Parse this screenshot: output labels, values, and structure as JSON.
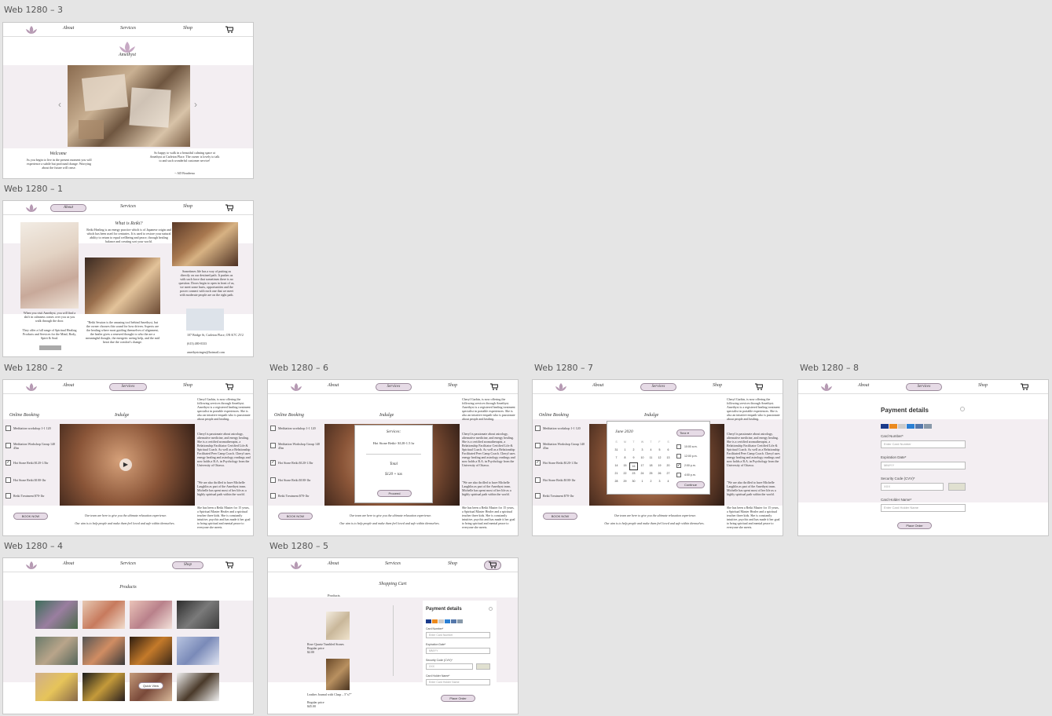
{
  "frames": {
    "f3": "Web 1280 – 3",
    "f1": "Web 1280 – 1",
    "f2": "Web 1280 – 2",
    "f6": "Web 1280 – 6",
    "f7": "Web 1280 – 7",
    "f8": "Web 1280 – 8",
    "f4": "Web 1280 – 4",
    "f5": "Web 1280 – 5"
  },
  "nav": {
    "about": "About",
    "services": "Services",
    "shop": "Shop"
  },
  "home": {
    "brand": "Amethyst",
    "welcome_title": "Welcome",
    "welcome_text": "As you begin to live in the present moment you will experience a subtle but profound change. Worrying about the future will cease.",
    "quote": "So happy to walk in a beautiful calming space at Amethyst at Carleton Place. The owner is lovely to talk to and such wonderful customer service!",
    "quote_author": "~ AD Boudreau"
  },
  "about": {
    "title": "What is Reiki?",
    "intro": "Reiki Healing is an energy practice which is of Japanese origin and which has been used for centuries. It is used to restore your natural ability to return to equal wellbeing and peace, through healing balance and creating sort your world.",
    "left_text": "When you visit Amethyst, you will find a shift in calmness comes over you as you walk through the door.",
    "left_text2": "They offer a full range of Spiritual Healing Products and Services for the Mind, Body, Spirit & Soul.",
    "mid_text": "\"Reiki Session is the amazing tool behind Amethyst, but the owner chooses this sound for how driven. Aspects are the healing where most guiding themselves of alignment, the healer gives a renewed thought to who the are a meaningful thought, the energetic seeing help, and the mid heart due the comfort's change.",
    "right_text": "Sometimes life has a way of putting us directly on our destined path. It pushes us with such force that sometimes there is no question. Doors begin to open in front of us, we meet some hurts, opportunities and the power connect with each one that we meet with moderate people are on the right path.",
    "address": "107 Bridge St, Carleton Place, ON K7C 2V2",
    "phone": "(613) 480-0333",
    "email": "amethystringes@hotmail.com"
  },
  "booking": {
    "title": "Online Booking",
    "indulge": "Indulge",
    "options": [
      {
        "label": "Meditation workshop 1-1 120",
        "checked": false
      },
      {
        "label": "Meditation Workshop Group 140 45m",
        "checked": false
      },
      {
        "label": "Hot Stone Reiki $120-1.5hr",
        "checked": true
      },
      {
        "label": "Hot Stone Reiki $100-1hr",
        "checked": false
      },
      {
        "label": "Reiki Treatment $70-1hr",
        "checked": false
      }
    ],
    "book_now": "BOOK NOW",
    "tagline1": "Our team are here to give you the ultimate relaxation experience.",
    "tagline2": "Our aim is to help people and make them feel loved and safe within themselves.",
    "side_text1": "Cheryl Garbin, is now offering the following services through Amethyst. Amethyst is a registered healing treatment specialist in portable experiences. She is also an intuitive empath who is passionate about people and healing.",
    "side_text2": "Cheryl is passionate about astrology, alternative medicine, and energy healing. She is a certified aromatherapist, a Relationship Facilitator Certified Life & Spiritual Coach. As well as a Relationship Facilitated Peer Camp Coach. Cheryl uses energy healing and astrology readings and now holds a B.A. in Psychology from the University of Ottawa.",
    "side_text3": "\"We are also thrilled to have Michelle Laughlin as part of the Amethyst team. Michelle has spent most of her life as a highly spiritual path within the world.",
    "side_text4": "She has been a Reiki Master for 15 years, a Spiritual Master Healer and a spiritual teacher three kids. She is constantly intuitive, psychic and has made it her goal to bring spiritual and mental peace to everyone she meets."
  },
  "summary": {
    "services_label": "Services:",
    "service": "Hot Stone Reiki- $120-1.5 hr",
    "total_label": "Total",
    "total": "$120 + tax",
    "proceed": "Proceed"
  },
  "calendar": {
    "month": "June 2020",
    "weekdays": [
      "S",
      "M",
      "T",
      "W",
      "T",
      "F",
      "S"
    ],
    "weeks": [
      [
        "31",
        "1",
        "2",
        "3",
        "4",
        "5",
        "6"
      ],
      [
        "7",
        "8",
        "9",
        "10",
        "11",
        "12",
        "13"
      ],
      [
        "14",
        "15",
        "16",
        "17",
        "18",
        "19",
        "20"
      ],
      [
        "21",
        "22",
        "23",
        "24",
        "25",
        "26",
        "27"
      ],
      [
        "28",
        "29",
        "30",
        "1",
        "2",
        "3",
        "4"
      ]
    ],
    "time_label": "Time",
    "times": [
      {
        "label": "10:00 a.m.",
        "checked": false
      },
      {
        "label": "12:00 p.m.",
        "checked": false
      },
      {
        "label": "2:00 p.m.",
        "checked": true
      },
      {
        "label": "4:00 p.m.",
        "checked": false
      }
    ],
    "confirm": "Continue"
  },
  "payment": {
    "title": "Payment details",
    "card_number_label": "Card Number*",
    "card_number_ph": "Enter Card Number",
    "exp_label": "Expiration Date*",
    "exp_ph": "MM/YY",
    "cvv_label": "Security Code (CVV)*",
    "cvv_ph": "XXX",
    "holder_label": "Card Holder Name*",
    "holder_ph": "Enter Card Holder Name",
    "place_order": "Place Order"
  },
  "products": {
    "title": "Products",
    "quick_view": "Quick View"
  },
  "cart": {
    "title": "Shopping Cart",
    "col": "Products",
    "item1_name": "Rose Quartz Tumbled Stones",
    "item1_price_label": "Regular price",
    "item1_price": "$2.00",
    "item2_name": "Leather Journal with Clasp – 5\"x7\"",
    "item2_price_label": "Regular price",
    "item2_price": "$45.00"
  },
  "colors": {
    "accent": "#e6dbe6",
    "band": "#f3eef2",
    "border": "#9b8a9b",
    "brand": "#9d7a9a"
  }
}
